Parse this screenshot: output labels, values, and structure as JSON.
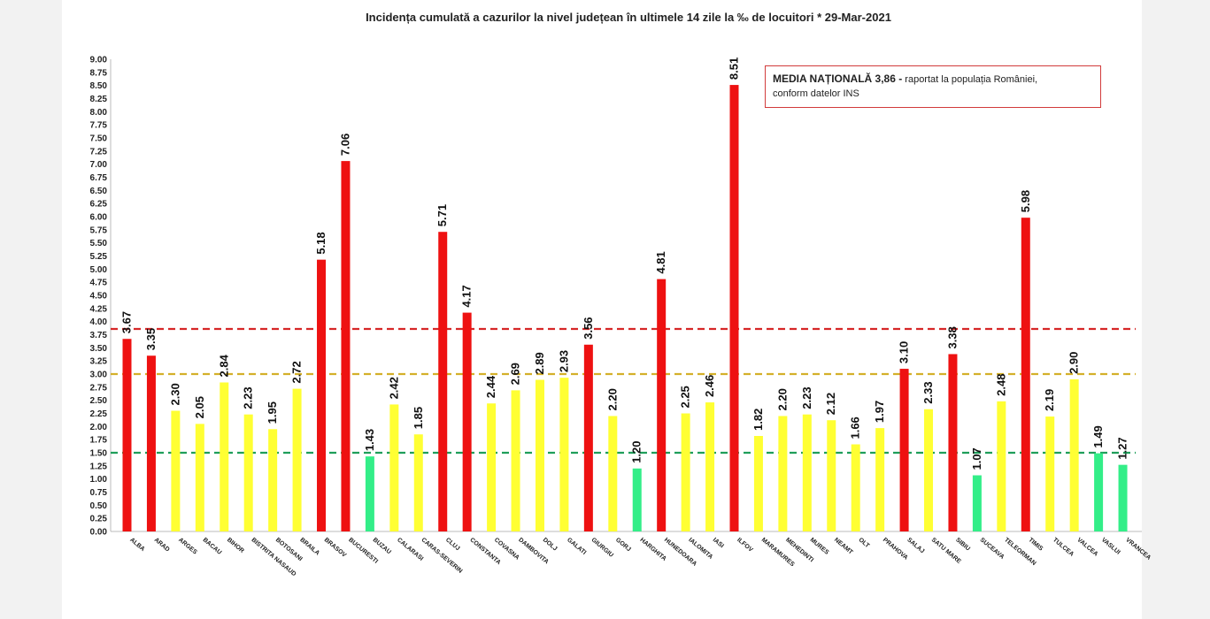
{
  "chart_data": {
    "type": "bar",
    "title": "Incidența cumulată a cazurilor la nivel județean în ultimele 14 zile la ‰ de locuitori *  29-Mar-2021",
    "ylim": [
      0,
      9
    ],
    "y_tick_labels": [
      "0.00",
      "0.25",
      "0.50",
      "0.75",
      "1.00",
      "1.25",
      "1.50",
      "1.75",
      "2.00",
      "2.25",
      "2.50",
      "2.75",
      "3.00",
      "3.25",
      "3.50",
      "3.75",
      "4.00",
      "4.25",
      "4.50",
      "4.75",
      "5.00",
      "5.25",
      "5.50",
      "5.75",
      "6.00",
      "6.25",
      "6.50",
      "6.75",
      "7.00",
      "7.25",
      "7.50",
      "7.75",
      "8.00",
      "8.25",
      "8.50",
      "8.75",
      "9.00"
    ],
    "categories": [
      "ALBA",
      "ARAD",
      "ARGES",
      "BACAU",
      "BIHOR",
      "BISTRITA NASAUD",
      "BOTOSANI",
      "BRAILA",
      "BRASOV",
      "BUCURESTI",
      "BUZAU",
      "CALARASI",
      "CARAS-SEVERIN",
      "CLUJ",
      "CONSTANTA",
      "COVASNA",
      "DAMBOVITA",
      "DOLJ",
      "GALATI",
      "GIURGIU",
      "GORJ",
      "HARGHITA",
      "HUNEDOARA",
      "IALOMITA",
      "IASI",
      "ILFOV",
      "MARAMURES",
      "MEHEDINTI",
      "MURES",
      "NEAMT",
      "OLT",
      "PRAHOVA",
      "SALAJ",
      "SATU MARE",
      "SIBIU",
      "SUCEAVA",
      "TELEORMAN",
      "TIMIS",
      "TULCEA",
      "VALCEA",
      "VASLUI",
      "VRANCEA"
    ],
    "values": [
      3.67,
      3.35,
      2.3,
      2.05,
      2.84,
      2.23,
      1.95,
      2.72,
      5.18,
      7.06,
      1.43,
      2.42,
      1.85,
      5.71,
      4.17,
      2.44,
      2.69,
      2.89,
      2.93,
      3.56,
      2.2,
      1.2,
      4.81,
      2.25,
      2.46,
      8.51,
      1.82,
      2.2,
      2.23,
      2.12,
      1.66,
      1.97,
      3.1,
      2.33,
      3.38,
      1.07,
      2.48,
      5.98,
      2.19,
      2.9,
      1.49,
      1.27
    ],
    "value_labels": [
      "3.67",
      "3.35",
      "2.30",
      "2.05",
      "2.84",
      "2.23",
      "1.95",
      "2.72",
      "5.18",
      "7.06",
      "1.43",
      "2.42",
      "1.85",
      "5.71",
      "4.17",
      "2.44",
      "2.69",
      "2.89",
      "2.93",
      "3.56",
      "2.20",
      "1.20",
      "4.81",
      "2.25",
      "2.46",
      "8.51",
      "1.82",
      "2.20",
      "2.23",
      "2.12",
      "1.66",
      "1.97",
      "3.10",
      "2.33",
      "3.38",
      "1.07",
      "2.48",
      "5.98",
      "2.19",
      "2.90",
      "1.49",
      "1.27"
    ],
    "reference_lines": [
      {
        "value": 3.86,
        "color": "#d62728",
        "style": "dashed"
      },
      {
        "value": 3.0,
        "color": "#d4b02a",
        "style": "dashed"
      },
      {
        "value": 1.5,
        "color": "#1f9e5a",
        "style": "dashed"
      }
    ],
    "colors": {
      "red": "#ee1111",
      "yellow": "#ffff33",
      "green": "#33ee88"
    },
    "color_thresholds": {
      "green_max": 1.5,
      "yellow_max": 3.0
    },
    "annotation": {
      "bold_text": "MEDIA NAȚIONALĂ  3,86 -",
      "text": " raportat la populația României,",
      "line2": "conform datelor INS"
    },
    "grid": false,
    "legend": "none"
  }
}
